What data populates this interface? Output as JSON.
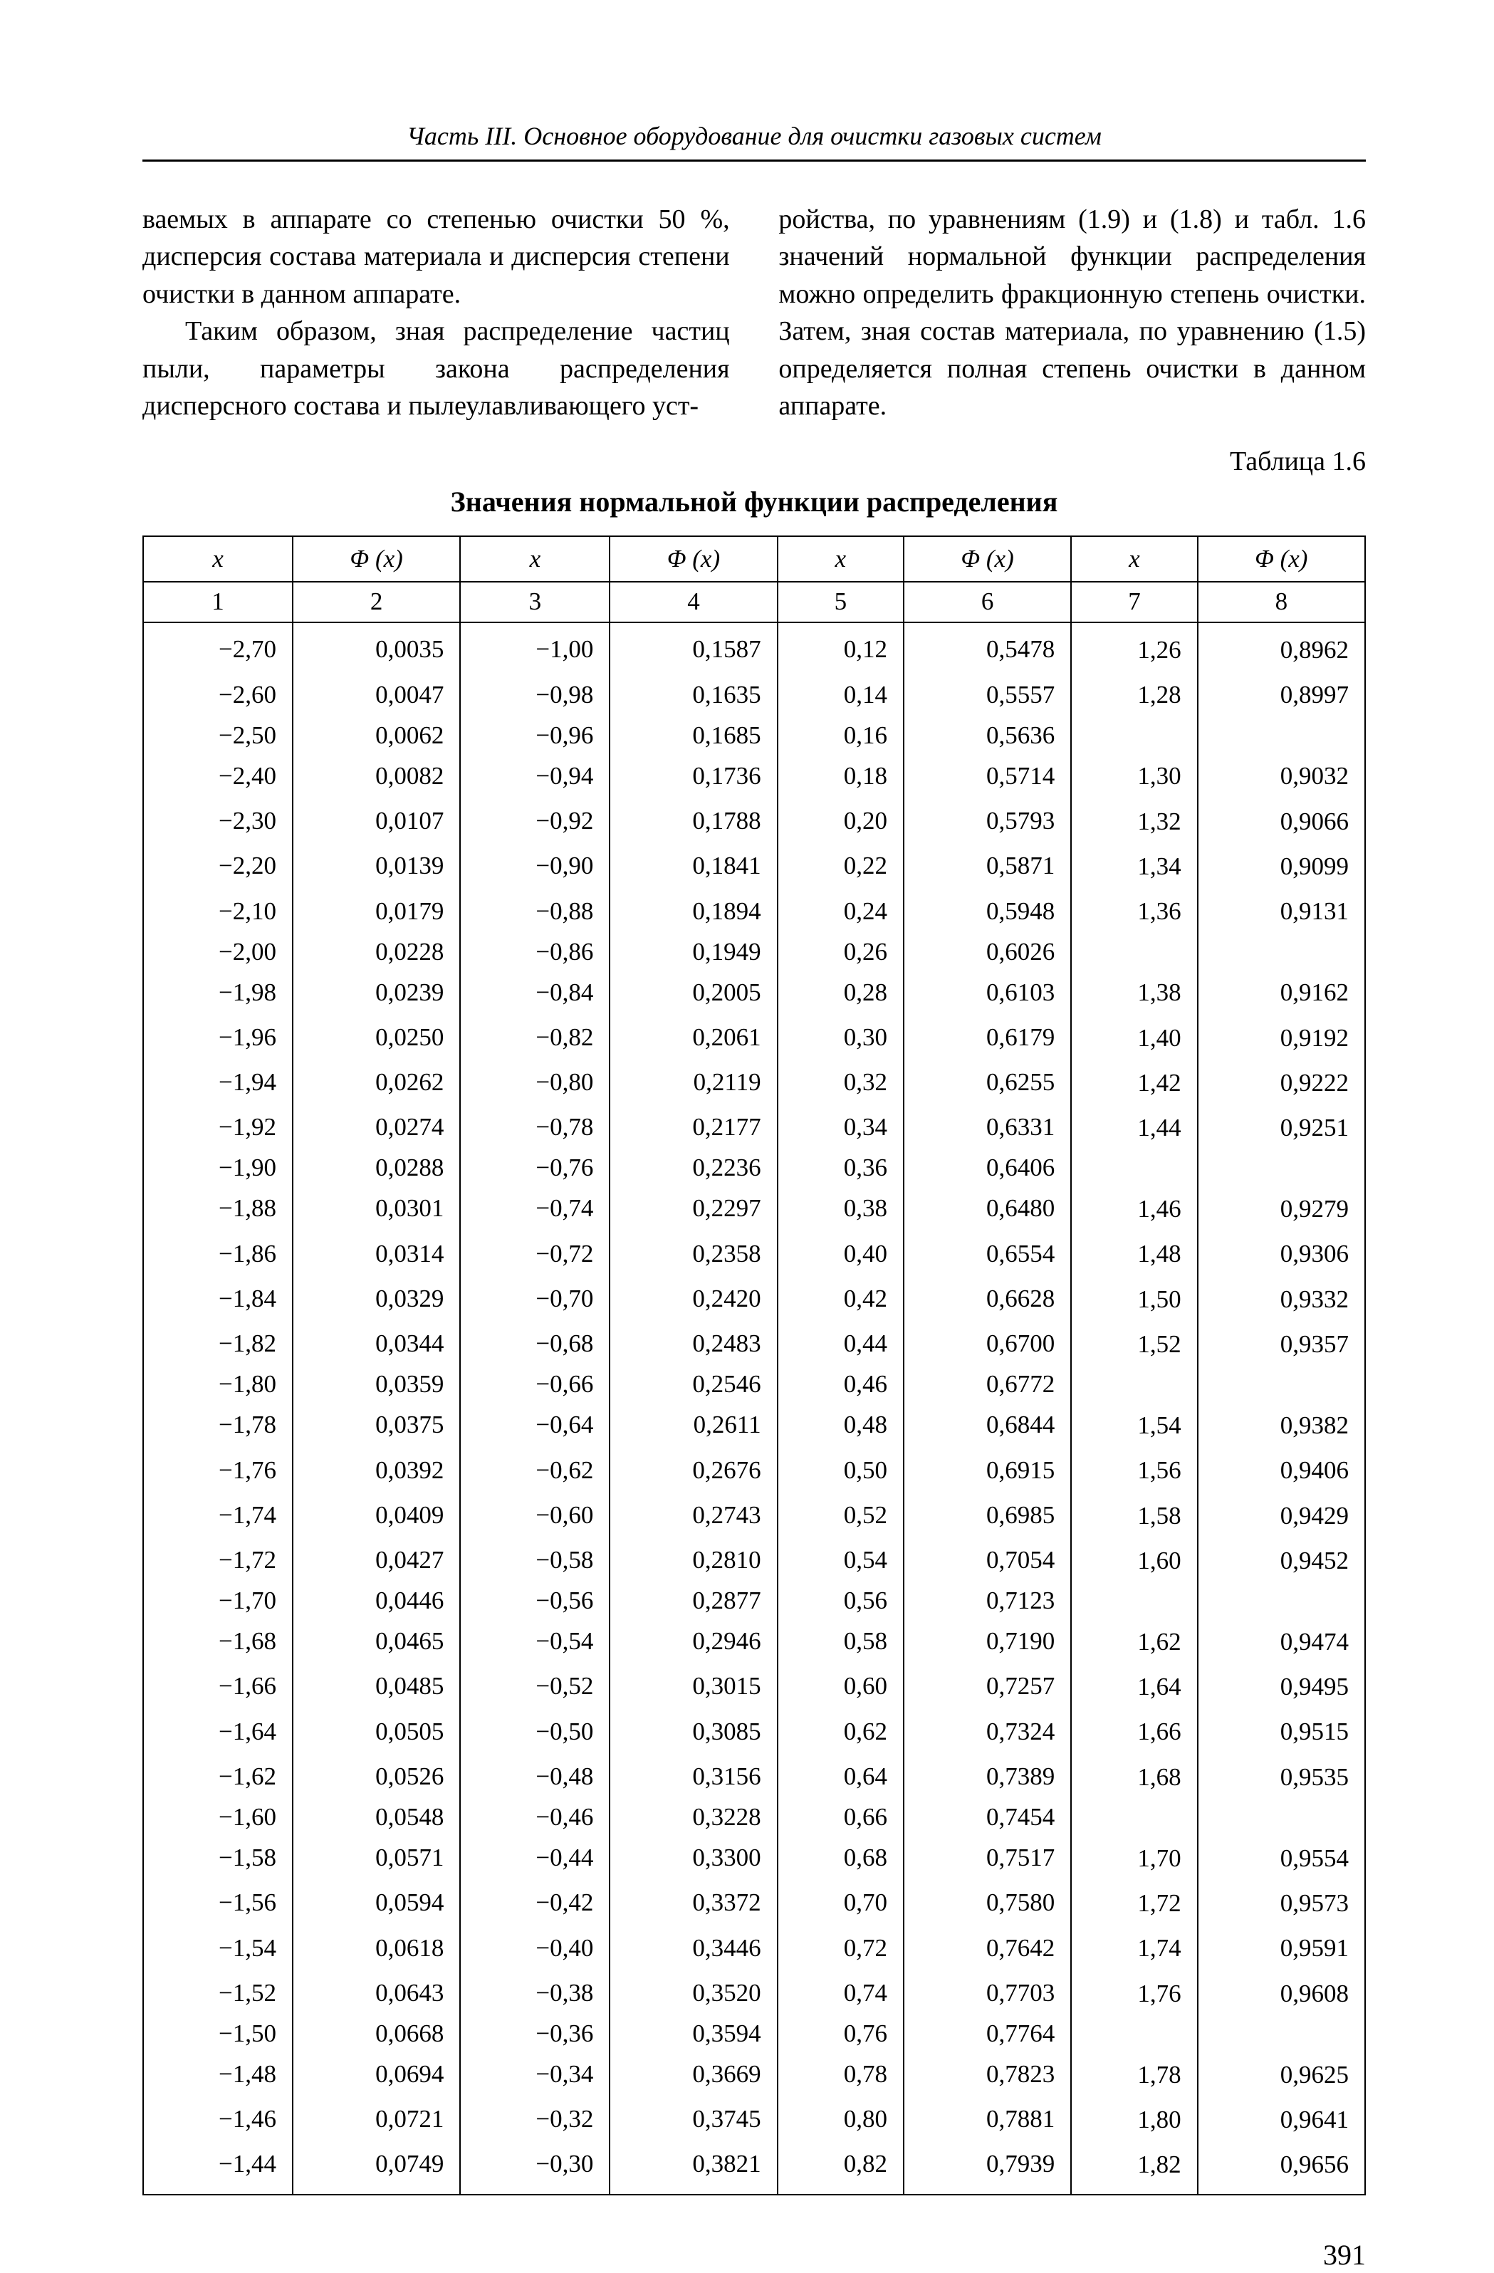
{
  "running_head": "Часть III. Основное оборудование для очистки газовых систем",
  "para_left_1": "ваемых в аппарате со степенью очистки 50 %, дисперсия состава материала и дисперсия степени очистки в данном аппарате.",
  "para_left_2": "Таким образом, зная распределение частиц пыли, параметры закона распределения дисперсного состава и пылеулавливающего уст-",
  "para_right_1": "ройства, по уравнениям (1.9) и (1.8) и табл. 1.6 значений нормальной функции распределения можно определить фракционную степень очистки. Затем, зная состав материала, по уравнению (1.5) определяется полная степень очистки в данном аппарате.",
  "table_label": "Таблица 1.6",
  "table_title": "Значения нормальной функции распределения",
  "th_x": "x",
  "th_phi": "Φ (x)",
  "num_row": [
    "1",
    "2",
    "3",
    "4",
    "5",
    "6",
    "7",
    "8"
  ],
  "cols12": [
    [
      "−2,70",
      "0,0035"
    ],
    [
      "−2,60",
      "0,0047"
    ],
    [
      "−2,50",
      "0,0062"
    ],
    [
      "−2,40",
      "0,0082"
    ],
    [
      "−2,30",
      "0,0107"
    ],
    [
      "−2,20",
      "0,0139"
    ],
    [
      "−2,10",
      "0,0179"
    ],
    [
      "−2,00",
      "0,0228"
    ],
    [
      "−1,98",
      "0,0239"
    ],
    [
      "−1,96",
      "0,0250"
    ],
    [
      "−1,94",
      "0,0262"
    ],
    [
      "−1,92",
      "0,0274"
    ],
    [
      "−1,90",
      "0,0288"
    ],
    [
      "−1,88",
      "0,0301"
    ],
    [
      "−1,86",
      "0,0314"
    ],
    [
      "−1,84",
      "0,0329"
    ],
    [
      "−1,82",
      "0,0344"
    ],
    [
      "−1,80",
      "0,0359"
    ],
    [
      "−1,78",
      "0,0375"
    ],
    [
      "−1,76",
      "0,0392"
    ],
    [
      "−1,74",
      "0,0409"
    ],
    [
      "−1,72",
      "0,0427"
    ],
    [
      "−1,70",
      "0,0446"
    ],
    [
      "−1,68",
      "0,0465"
    ],
    [
      "−1,66",
      "0,0485"
    ],
    [
      "−1,64",
      "0,0505"
    ],
    [
      "−1,62",
      "0,0526"
    ],
    [
      "−1,60",
      "0,0548"
    ],
    [
      "−1,58",
      "0,0571"
    ],
    [
      "−1,56",
      "0,0594"
    ],
    [
      "−1,54",
      "0,0618"
    ],
    [
      "−1,52",
      "0,0643"
    ],
    [
      "−1,50",
      "0,0668"
    ],
    [
      "−1,48",
      "0,0694"
    ],
    [
      "−1,46",
      "0,0721"
    ],
    [
      "−1,44",
      "0,0749"
    ]
  ],
  "cols34": [
    [
      "−1,00",
      "0,1587"
    ],
    [
      "−0,98",
      "0,1635"
    ],
    [
      "−0,96",
      "0,1685"
    ],
    [
      "−0,94",
      "0,1736"
    ],
    [
      "−0,92",
      "0,1788"
    ],
    [
      "−0,90",
      "0,1841"
    ],
    [
      "−0,88",
      "0,1894"
    ],
    [
      "−0,86",
      "0,1949"
    ],
    [
      "−0,84",
      "0,2005"
    ],
    [
      "−0,82",
      "0,2061"
    ],
    [
      "−0,80",
      "0,2119"
    ],
    [
      "−0,78",
      "0,2177"
    ],
    [
      "−0,76",
      "0,2236"
    ],
    [
      "−0,74",
      "0,2297"
    ],
    [
      "−0,72",
      "0,2358"
    ],
    [
      "−0,70",
      "0,2420"
    ],
    [
      "−0,68",
      "0,2483"
    ],
    [
      "−0,66",
      "0,2546"
    ],
    [
      "−0,64",
      "0,2611"
    ],
    [
      "−0,62",
      "0,2676"
    ],
    [
      "−0,60",
      "0,2743"
    ],
    [
      "−0,58",
      "0,2810"
    ],
    [
      "−0,56",
      "0,2877"
    ],
    [
      "−0,54",
      "0,2946"
    ],
    [
      "−0,52",
      "0,3015"
    ],
    [
      "−0,50",
      "0,3085"
    ],
    [
      "−0,48",
      "0,3156"
    ],
    [
      "−0,46",
      "0,3228"
    ],
    [
      "−0,44",
      "0,3300"
    ],
    [
      "−0,42",
      "0,3372"
    ],
    [
      "−0,40",
      "0,3446"
    ],
    [
      "−0,38",
      "0,3520"
    ],
    [
      "−0,36",
      "0,3594"
    ],
    [
      "−0,34",
      "0,3669"
    ],
    [
      "−0,32",
      "0,3745"
    ],
    [
      "−0,30",
      "0,3821"
    ]
  ],
  "cols56": [
    [
      "0,12",
      "0,5478"
    ],
    [
      "0,14",
      "0,5557"
    ],
    [
      "0,16",
      "0,5636"
    ],
    [
      "0,18",
      "0,5714"
    ],
    [
      "0,20",
      "0,5793"
    ],
    [
      "0,22",
      "0,5871"
    ],
    [
      "0,24",
      "0,5948"
    ],
    [
      "0,26",
      "0,6026"
    ],
    [
      "0,28",
      "0,6103"
    ],
    [
      "0,30",
      "0,6179"
    ],
    [
      "0,32",
      "0,6255"
    ],
    [
      "0,34",
      "0,6331"
    ],
    [
      "0,36",
      "0,6406"
    ],
    [
      "0,38",
      "0,6480"
    ],
    [
      "0,40",
      "0,6554"
    ],
    [
      "0,42",
      "0,6628"
    ],
    [
      "0,44",
      "0,6700"
    ],
    [
      "0,46",
      "0,6772"
    ],
    [
      "0,48",
      "0,6844"
    ],
    [
      "0,50",
      "0,6915"
    ],
    [
      "0,52",
      "0,6985"
    ],
    [
      "0,54",
      "0,7054"
    ],
    [
      "0,56",
      "0,7123"
    ],
    [
      "0,58",
      "0,7190"
    ],
    [
      "0,60",
      "0,7257"
    ],
    [
      "0,62",
      "0,7324"
    ],
    [
      "0,64",
      "0,7389"
    ],
    [
      "0,66",
      "0,7454"
    ],
    [
      "0,68",
      "0,7517"
    ],
    [
      "0,70",
      "0,7580"
    ],
    [
      "0,72",
      "0,7642"
    ],
    [
      "0,74",
      "0,7703"
    ],
    [
      "0,76",
      "0,7764"
    ],
    [
      "0,78",
      "0,7823"
    ],
    [
      "0,80",
      "0,7881"
    ],
    [
      "0,82",
      "0,7939"
    ]
  ],
  "cols78": [
    [
      "1,26",
      "0,8962"
    ],
    [
      "1,28",
      "0,8997"
    ],
    [
      "1,30",
      "0,9032"
    ],
    [
      "1,32",
      "0,9066"
    ],
    [
      "1,34",
      "0,9099"
    ],
    [
      "1,36",
      "0,9131"
    ],
    [
      "1,38",
      "0,9162"
    ],
    [
      "1,40",
      "0,9192"
    ],
    [
      "1,42",
      "0,9222"
    ],
    [
      "1,44",
      "0,9251"
    ],
    [
      "1,46",
      "0,9279"
    ],
    [
      "1,48",
      "0,9306"
    ],
    [
      "1,50",
      "0,9332"
    ],
    [
      "1,52",
      "0,9357"
    ],
    [
      "1,54",
      "0,9382"
    ],
    [
      "1,56",
      "0,9406"
    ],
    [
      "1,58",
      "0,9429"
    ],
    [
      "1,60",
      "0,9452"
    ],
    [
      "1,62",
      "0,9474"
    ],
    [
      "1,64",
      "0,9495"
    ],
    [
      "1,66",
      "0,9515"
    ],
    [
      "1,68",
      "0,9535"
    ],
    [
      "1,70",
      "0,9554"
    ],
    [
      "1,72",
      "0,9573"
    ],
    [
      "1,74",
      "0,9591"
    ],
    [
      "1,76",
      "0,9608"
    ],
    [
      "1,78",
      "0,9625"
    ],
    [
      "1,80",
      "0,9641"
    ],
    [
      "1,82",
      "0,9656"
    ]
  ],
  "page_number": "391"
}
